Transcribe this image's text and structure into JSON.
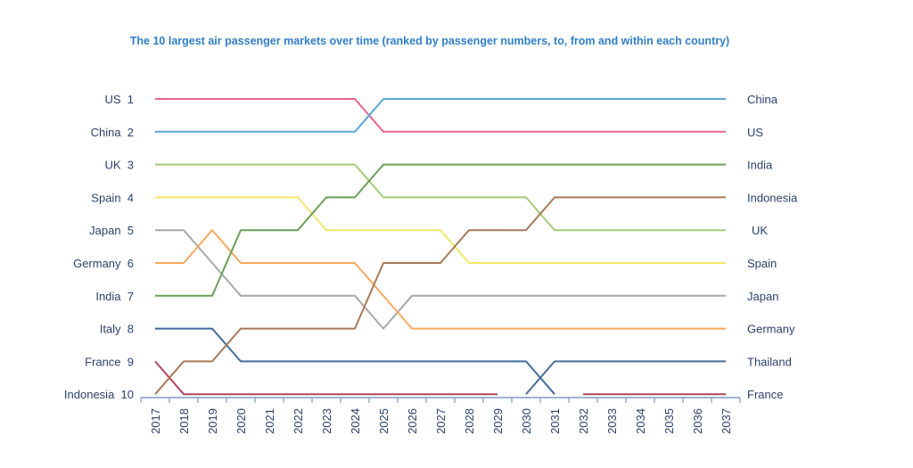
{
  "chart_data": {
    "type": "line",
    "title": "The 10 largest air passenger markets over time (ranked by passenger numbers, to, from and within each country)",
    "x": [
      2017,
      2018,
      2019,
      2020,
      2021,
      2022,
      2023,
      2024,
      2025,
      2026,
      2027,
      2028,
      2029,
      2030,
      2031,
      2032,
      2033,
      2034,
      2035,
      2036,
      2037
    ],
    "ylim": [
      1,
      10
    ],
    "y_inverted": true,
    "grid": false,
    "left_labels": [
      "US  1",
      "China  2",
      "UK  3",
      "Spain  4",
      "Japan  5",
      "Germany  6",
      "India  7",
      "Italy  8",
      "France  9",
      "Indonesia  10"
    ],
    "right_labels": [
      "China",
      "US",
      "India",
      "Indonesia",
      "UK",
      "Spain",
      "Japan",
      "Germany",
      "Thailand",
      "France"
    ],
    "series": [
      {
        "name": "US",
        "color": "#e8658c",
        "values": [
          1,
          1,
          1,
          1,
          1,
          1,
          1,
          1,
          2,
          2,
          2,
          2,
          2,
          2,
          2,
          2,
          2,
          2,
          2,
          2,
          2
        ]
      },
      {
        "name": "China",
        "color": "#5ba6dc",
        "values": [
          2,
          2,
          2,
          2,
          2,
          2,
          2,
          2,
          1,
          1,
          1,
          1,
          1,
          1,
          1,
          1,
          1,
          1,
          1,
          1,
          1
        ]
      },
      {
        "name": "UK",
        "color": "#a3cc78",
        "values": [
          3,
          3,
          3,
          3,
          3,
          3,
          3,
          3,
          4,
          4,
          4,
          4,
          4,
          4,
          5,
          5,
          5,
          5,
          5,
          5,
          5
        ]
      },
      {
        "name": "Spain",
        "color": "#f3e86a",
        "values": [
          4,
          4,
          4,
          4,
          4,
          4,
          5,
          5,
          5,
          5,
          5,
          6,
          6,
          6,
          6,
          6,
          6,
          6,
          6,
          6,
          6
        ]
      },
      {
        "name": "Japan",
        "color": "#a8a8a8",
        "values": [
          5,
          5,
          6,
          7,
          7,
          7,
          7,
          7,
          8,
          7,
          7,
          7,
          7,
          7,
          7,
          7,
          7,
          7,
          7,
          7,
          7
        ]
      },
      {
        "name": "Germany",
        "color": "#f5aa5e",
        "values": [
          6,
          6,
          5,
          6,
          6,
          6,
          6,
          6,
          7,
          8,
          8,
          8,
          8,
          8,
          8,
          8,
          8,
          8,
          8,
          8,
          8
        ]
      },
      {
        "name": "India",
        "color": "#6a9f58",
        "values": [
          7,
          7,
          7,
          5,
          5,
          5,
          4,
          4,
          3,
          3,
          3,
          3,
          3,
          3,
          3,
          3,
          3,
          3,
          3,
          3,
          3
        ]
      },
      {
        "name": "Italy",
        "color": "#3f6b9c",
        "values": [
          8,
          8,
          8,
          9,
          9,
          9,
          9,
          9,
          9,
          9,
          9,
          9,
          9,
          9,
          10,
          null,
          null,
          null,
          null,
          null,
          null
        ]
      },
      {
        "name": "France",
        "color": "#b2445e",
        "values": [
          9,
          10,
          10,
          10,
          10,
          10,
          10,
          10,
          10,
          10,
          10,
          10,
          10,
          null,
          null,
          10,
          10,
          10,
          10,
          10,
          10
        ]
      },
      {
        "name": "Indonesia",
        "color": "#a87858",
        "values": [
          10,
          9,
          9,
          8,
          8,
          8,
          8,
          8,
          6,
          6,
          6,
          5,
          5,
          5,
          4,
          4,
          4,
          4,
          4,
          4,
          4
        ]
      },
      {
        "name": "Thailand",
        "color": "#4a6d95",
        "values": [
          null,
          null,
          null,
          null,
          null,
          null,
          null,
          null,
          null,
          null,
          null,
          null,
          null,
          10,
          9,
          9,
          9,
          9,
          9,
          9,
          9
        ]
      }
    ],
    "axis_color": "#7f9cc0",
    "label_color": "#2c3e6b"
  }
}
